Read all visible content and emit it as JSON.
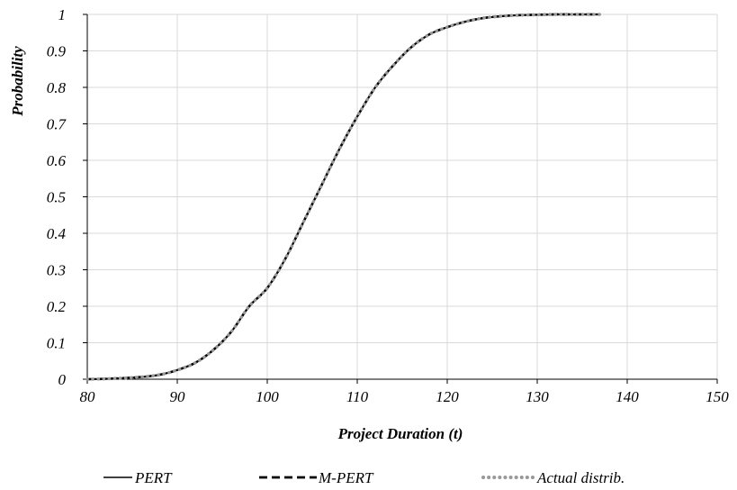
{
  "chart_data": {
    "type": "line",
    "title": "",
    "xlabel": "Project Duration (t)",
    "ylabel": "Probability",
    "xlim": [
      80,
      150
    ],
    "ylim": [
      0,
      1
    ],
    "x_ticks": [
      80,
      90,
      100,
      110,
      120,
      130,
      140,
      150
    ],
    "y_ticks": [
      0,
      0.1,
      0.2,
      0.3,
      0.4,
      0.5,
      0.6,
      0.7,
      0.8,
      0.9,
      1
    ],
    "y_tick_labels": [
      "0",
      "0.1",
      "0.2",
      "0.3",
      "0.4",
      "0.5",
      "0.6",
      "0.7",
      "0.8",
      "0.9",
      "1"
    ],
    "grid": true,
    "legend_position": "bottom",
    "series": [
      {
        "name": "PERT",
        "style": "solid",
        "color": "#000000",
        "x": [
          80,
          82,
          84,
          86,
          88,
          90,
          92,
          94,
          96,
          98,
          100,
          102,
          104,
          106,
          108,
          110,
          112,
          114,
          116,
          118,
          120,
          122,
          124,
          126,
          128,
          130,
          132,
          134,
          137
        ],
        "y": [
          0.0,
          0.001,
          0.003,
          0.006,
          0.012,
          0.025,
          0.045,
          0.08,
          0.13,
          0.2,
          0.25,
          0.33,
          0.43,
          0.53,
          0.63,
          0.72,
          0.8,
          0.86,
          0.91,
          0.945,
          0.965,
          0.98,
          0.99,
          0.995,
          0.998,
          0.999,
          1.0,
          1.0,
          1.0
        ]
      },
      {
        "name": "M-PERT",
        "style": "dashed",
        "color": "#000000",
        "x": [
          80,
          82,
          84,
          86,
          88,
          90,
          92,
          94,
          96,
          98,
          100,
          102,
          104,
          106,
          108,
          110,
          112,
          114,
          116,
          118,
          120,
          122,
          124,
          126,
          128,
          130,
          132,
          134,
          137
        ],
        "y": [
          0.0,
          0.001,
          0.003,
          0.006,
          0.012,
          0.025,
          0.045,
          0.08,
          0.13,
          0.2,
          0.25,
          0.33,
          0.43,
          0.53,
          0.63,
          0.72,
          0.8,
          0.86,
          0.91,
          0.945,
          0.965,
          0.98,
          0.99,
          0.995,
          0.998,
          0.999,
          1.0,
          1.0,
          1.0
        ]
      },
      {
        "name": "Actual distrib.",
        "style": "dotted",
        "color": "#999999",
        "x": [
          80,
          82,
          84,
          86,
          88,
          90,
          92,
          94,
          96,
          98,
          100,
          102,
          104,
          106,
          108,
          110,
          112,
          114,
          116,
          118,
          120,
          122,
          124,
          126,
          128,
          130,
          132,
          134,
          137
        ],
        "y": [
          0.0,
          0.001,
          0.003,
          0.006,
          0.012,
          0.025,
          0.045,
          0.08,
          0.13,
          0.2,
          0.25,
          0.33,
          0.43,
          0.53,
          0.63,
          0.72,
          0.8,
          0.86,
          0.91,
          0.945,
          0.965,
          0.98,
          0.99,
          0.995,
          0.998,
          0.999,
          1.0,
          1.0,
          1.0
        ]
      }
    ]
  }
}
